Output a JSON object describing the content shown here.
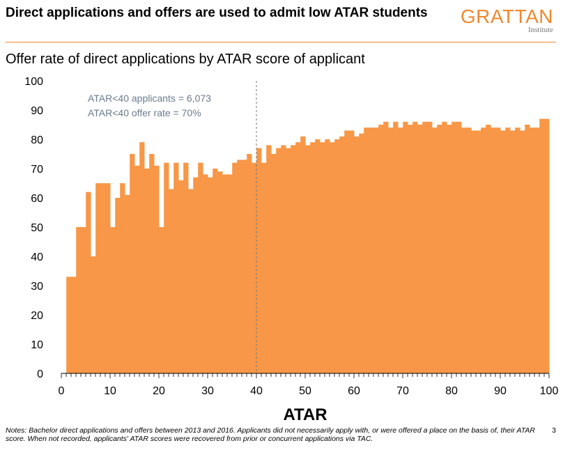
{
  "header": {
    "title": "Direct applications and offers are used to admit low ATAR students",
    "logo_main": "GRATTAN",
    "logo_sub": "Institute"
  },
  "footer": {
    "notes": "Notes: Bachelor direct applications and offers between 2013 and 2016. Applicants did not necessarily apply with, or were offered a place on the basis of, their ATAR score. When not recorded, applicants' ATAR scores were recovered from prior or concurrent applications via TAC.",
    "page_number": "3"
  },
  "colors": {
    "bar": "#f79747",
    "accent": "#f0882f",
    "annotation": "#6b7b8c"
  },
  "chart_data": {
    "type": "bar",
    "title": "Offer rate of direct applications by ATAR score of applicant",
    "xlabel": "ATAR",
    "ylabel": "",
    "xlim": [
      0,
      100
    ],
    "ylim": [
      0,
      100
    ],
    "x_ticks": [
      0,
      10,
      20,
      30,
      40,
      50,
      60,
      70,
      80,
      90,
      100
    ],
    "y_ticks": [
      0,
      10,
      20,
      30,
      40,
      50,
      60,
      70,
      80,
      90,
      100
    ],
    "grid": false,
    "legend": "none",
    "reference_line": {
      "x": 40,
      "style": "dashed"
    },
    "annotations": [
      "ATAR<40 applicants = 6,073",
      "ATAR<40 offer rate = 70%"
    ],
    "x": [
      2,
      3,
      4,
      5,
      6,
      7,
      8,
      9,
      10,
      11,
      12,
      13,
      14,
      15,
      16,
      17,
      18,
      19,
      20,
      21,
      22,
      23,
      24,
      25,
      26,
      27,
      28,
      29,
      30,
      31,
      32,
      33,
      34,
      35,
      36,
      37,
      38,
      39,
      40,
      41,
      42,
      43,
      44,
      45,
      46,
      47,
      48,
      49,
      50,
      51,
      52,
      53,
      54,
      55,
      56,
      57,
      58,
      59,
      60,
      61,
      62,
      63,
      64,
      65,
      66,
      67,
      68,
      69,
      70,
      71,
      72,
      73,
      74,
      75,
      76,
      77,
      78,
      79,
      80,
      81,
      82,
      83,
      84,
      85,
      86,
      87,
      88,
      89,
      90,
      91,
      92,
      93,
      94,
      95,
      96,
      97,
      98,
      99,
      100
    ],
    "values": [
      33,
      33,
      50,
      50,
      62,
      40,
      65,
      65,
      65,
      50,
      60,
      65,
      61,
      75,
      71,
      79,
      70,
      75,
      71,
      50,
      72,
      63,
      72,
      66,
      72,
      63,
      67,
      72,
      68,
      67,
      70,
      69,
      68,
      68,
      72,
      73,
      73,
      75,
      72,
      77,
      72,
      78,
      75,
      77,
      78,
      77,
      78,
      79,
      81,
      78,
      79,
      80,
      79,
      80,
      79,
      80,
      81,
      83,
      83,
      81,
      82,
      84,
      84,
      84,
      85,
      86,
      84,
      86,
      84,
      86,
      85,
      86,
      85,
      86,
      86,
      84,
      85,
      86,
      85,
      86,
      86,
      84,
      84,
      83,
      83,
      84,
      85,
      84,
      84,
      83,
      84,
      83,
      84,
      83,
      85,
      84,
      84,
      87,
      87
    ]
  }
}
